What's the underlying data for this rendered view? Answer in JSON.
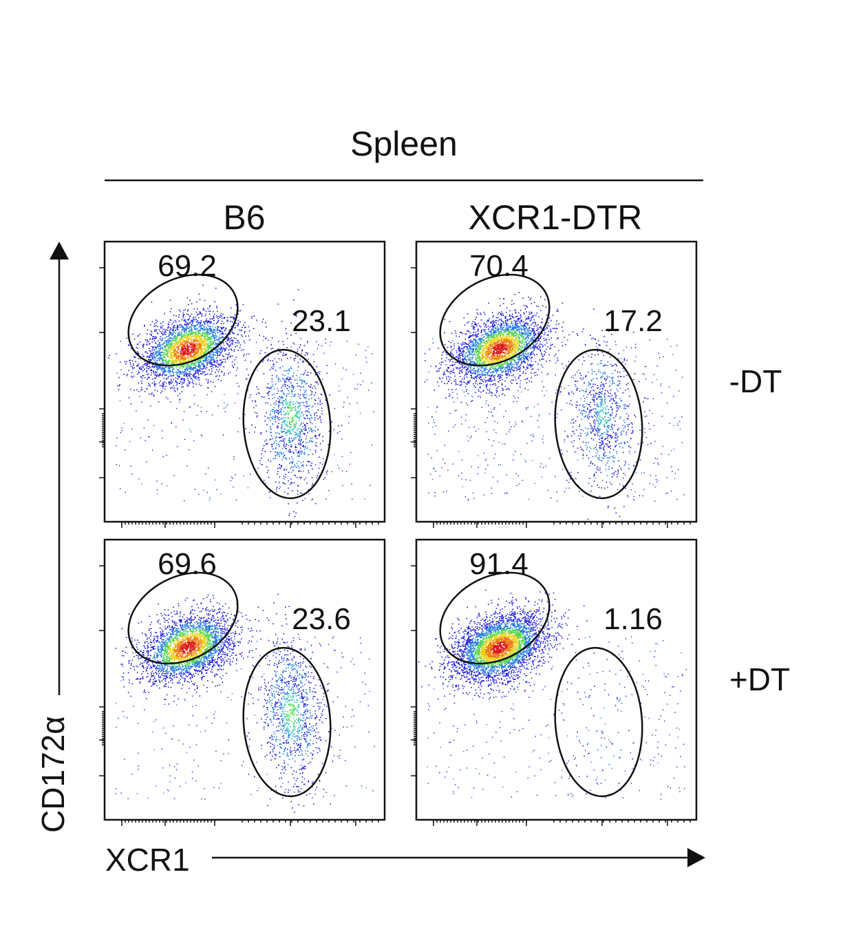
{
  "chart_data": {
    "type": "scatter",
    "tissue": "Spleen",
    "columns": [
      "B6",
      "XCR1-DTR"
    ],
    "rows": [
      "-DT",
      "+DT"
    ],
    "xlabel": "XCR1",
    "ylabel": "CD172α",
    "panels": [
      {
        "column": "B6",
        "row": "-DT",
        "gates": [
          {
            "label": "69.2"
          },
          {
            "label": "23.1"
          }
        ],
        "xcr1_fraction": 0.231,
        "cd172_fraction": 0.692
      },
      {
        "column": "XCR1-DTR",
        "row": "-DT",
        "gates": [
          {
            "label": "70.4"
          },
          {
            "label": "17.2"
          }
        ],
        "xcr1_fraction": 0.172,
        "cd172_fraction": 0.704
      },
      {
        "column": "B6",
        "row": "+DT",
        "gates": [
          {
            "label": "69.6"
          },
          {
            "label": "23.6"
          }
        ],
        "xcr1_fraction": 0.236,
        "cd172_fraction": 0.696
      },
      {
        "column": "XCR1-DTR",
        "row": "+DT",
        "gates": [
          {
            "label": "91.4"
          },
          {
            "label": "1.16"
          }
        ],
        "xcr1_fraction": 0.0116,
        "cd172_fraction": 0.914
      }
    ],
    "density_colors": [
      "#1a1ad6",
      "#1f78e0",
      "#19c3b4",
      "#4cd64c",
      "#e8d21a",
      "#f07a10",
      "#d81515"
    ]
  }
}
